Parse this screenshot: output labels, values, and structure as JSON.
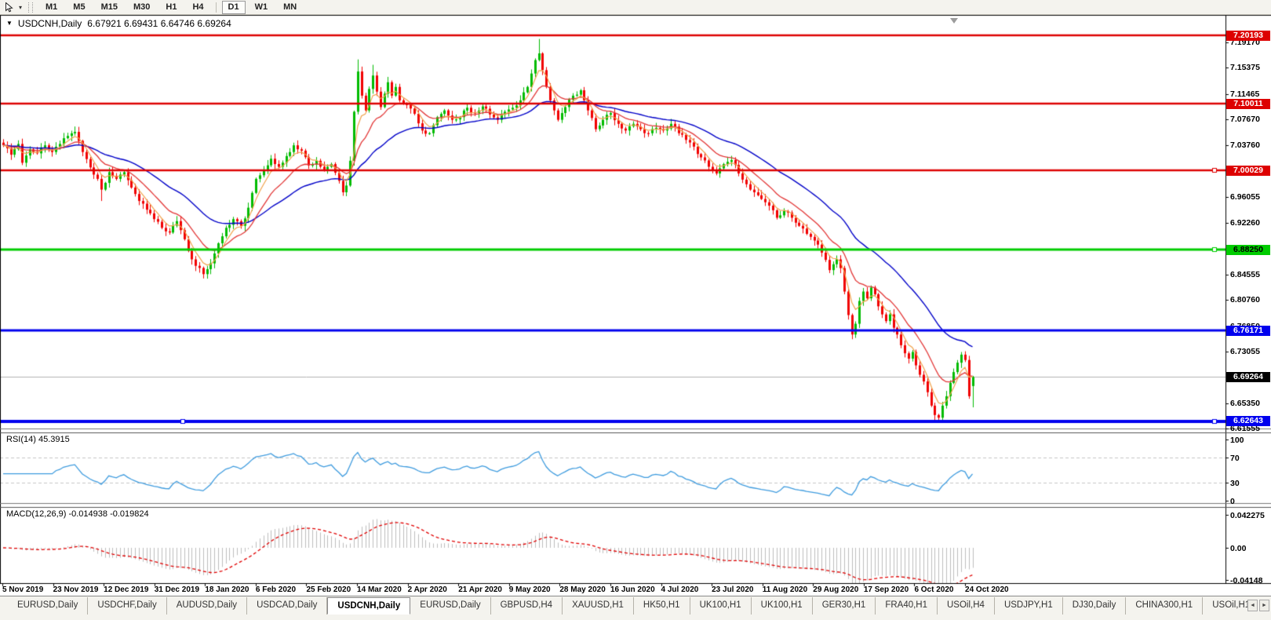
{
  "toolbar": {
    "dropdown_icon": "▾",
    "timeframes": [
      "M1",
      "M5",
      "M15",
      "M30",
      "H1",
      "H4",
      "D1",
      "W1",
      "MN"
    ],
    "active": "D1"
  },
  "chart": {
    "menu_icon": "▼",
    "symbol_period": "USDCNH,Daily",
    "ohlc_text": "6.67921 6.69431 6.64746 6.69264",
    "rsi_label": "RSI(14) 45.3915",
    "macd_label": "MACD(12,26,9) -0.014938 -0.019824"
  },
  "chart_data": {
    "type": "candlestick",
    "title": "USDCNH,Daily",
    "ohlc_display": {
      "open": "6.67921",
      "high": "6.69431",
      "low": "6.64746",
      "close": "6.69264"
    },
    "colors": {
      "bull": "#00bb00",
      "bear": "#f10000",
      "ma_fast": "#f0a24b",
      "ma_mid": "#e23636",
      "ma_slow": "#0000c8",
      "rsi": "#3e9bde",
      "macd_hist": "#bdbdbd",
      "macd_signal": "#e00000",
      "current_line": "#b0b0b0"
    },
    "y_axis": {
      "range": [
        6.6085,
        7.2152
      ],
      "ticks": [
        "7.19170",
        "7.15375",
        "7.11465",
        "7.07670",
        "7.03760",
        "6.96055",
        "6.92260",
        "6.84555",
        "6.80760",
        "6.76850",
        "6.73055",
        "6.65350",
        "6.61555"
      ]
    },
    "x_axis": {
      "labels": [
        "5 Nov 2019",
        "23 Nov 2019",
        "12 Dec 2019",
        "31 Dec 2019",
        "18 Jan 2020",
        "6 Feb 2020",
        "25 Feb 2020",
        "14 Mar 2020",
        "2 Apr 2020",
        "21 Apr 2020",
        "9 May 2020",
        "28 May 2020",
        "16 Jun 2020",
        "4 Jul 2020",
        "23 Jul 2020",
        "11 Aug 2020",
        "29 Aug 2020",
        "17 Sep 2020",
        "6 Oct 2020",
        "24 Oct 2020"
      ]
    },
    "hlines": [
      {
        "price": 7.20193,
        "label": "7.20193",
        "color": "#dd0000",
        "width": 2.5,
        "label_bg": "#dd0000",
        "label_fg": "#ffffff",
        "handles": []
      },
      {
        "price": 7.10011,
        "label": "7.10011",
        "color": "#dd0000",
        "width": 2.5,
        "label_bg": "#dd0000",
        "label_fg": "#ffffff",
        "handles": []
      },
      {
        "price": 7.00029,
        "label": "7.00029",
        "color": "#dd0000",
        "width": 2.5,
        "label_bg": "#dd0000",
        "label_fg": "#ffffff",
        "handles": [
          1548
        ]
      },
      {
        "price": 6.8825,
        "label": "6.88250",
        "color": "#00cc00",
        "width": 3,
        "label_bg": "#00cc00",
        "label_fg": "#000000",
        "handles": [
          1548
        ]
      },
      {
        "price": 6.76171,
        "label": "6.76171",
        "color": "#0000ee",
        "width": 3,
        "label_bg": "#0000ee",
        "label_fg": "#ffffff",
        "handles": []
      },
      {
        "price": 6.62643,
        "label": "6.62643",
        "color": "#0000ee",
        "width": 4,
        "label_bg": "#0000ee",
        "label_fg": "#ffffff",
        "handles": [
          233,
          1548
        ]
      }
    ],
    "current_price": {
      "value": 6.69264,
      "label": "6.69264",
      "label_bg": "#000000",
      "label_fg": "#ffffff"
    },
    "candles": {
      "count": 258,
      "close_anchors": [
        [
          0,
          7.038
        ],
        [
          2,
          7.024
        ],
        [
          4,
          7.04
        ],
        [
          5,
          7.012
        ],
        [
          7,
          7.032
        ],
        [
          9,
          7.026
        ],
        [
          11,
          7.038
        ],
        [
          13,
          7.028
        ],
        [
          15,
          7.04
        ],
        [
          17,
          7.052
        ],
        [
          19,
          7.058
        ],
        [
          21,
          7.028
        ],
        [
          23,
          7.005
        ],
        [
          25,
          6.988
        ],
        [
          26,
          6.972
        ],
        [
          28,
          6.998
        ],
        [
          30,
          6.988
        ],
        [
          32,
          6.998
        ],
        [
          34,
          6.975
        ],
        [
          36,
          6.955
        ],
        [
          38,
          6.942
        ],
        [
          40,
          6.928
        ],
        [
          42,
          6.915
        ],
        [
          44,
          6.908
        ],
        [
          46,
          6.925
        ],
        [
          48,
          6.898
        ],
        [
          50,
          6.868
        ],
        [
          53,
          6.846
        ],
        [
          55,
          6.862
        ],
        [
          57,
          6.892
        ],
        [
          59,
          6.915
        ],
        [
          61,
          6.928
        ],
        [
          63,
          6.918
        ],
        [
          65,
          6.945
        ],
        [
          67,
          6.988
        ],
        [
          69,
          7.0
        ],
        [
          71,
          7.018
        ],
        [
          73,
          7.006
        ],
        [
          75,
          7.022
        ],
        [
          77,
          7.038
        ],
        [
          79,
          7.03
        ],
        [
          81,
          7.008
        ],
        [
          83,
          7.015
        ],
        [
          85,
          7.002
        ],
        [
          87,
          7.01
        ],
        [
          89,
          6.985
        ],
        [
          90,
          6.968
        ],
        [
          91,
          6.978
        ],
        [
          92,
          7.015
        ],
        [
          93,
          7.088
        ],
        [
          94,
          7.148
        ],
        [
          95,
          7.112
        ],
        [
          96,
          7.09
        ],
        [
          97,
          7.122
        ],
        [
          98,
          7.142
        ],
        [
          99,
          7.118
        ],
        [
          100,
          7.095
        ],
        [
          101,
          7.115
        ],
        [
          102,
          7.132
        ],
        [
          103,
          7.112
        ],
        [
          104,
          7.125
        ],
        [
          105,
          7.105
        ],
        [
          107,
          7.098
        ],
        [
          109,
          7.085
        ],
        [
          111,
          7.06
        ],
        [
          113,
          7.056
        ],
        [
          115,
          7.08
        ],
        [
          117,
          7.09
        ],
        [
          119,
          7.076
        ],
        [
          121,
          7.08
        ],
        [
          123,
          7.094
        ],
        [
          125,
          7.086
        ],
        [
          127,
          7.096
        ],
        [
          129,
          7.084
        ],
        [
          131,
          7.076
        ],
        [
          133,
          7.088
        ],
        [
          135,
          7.094
        ],
        [
          137,
          7.105
        ],
        [
          139,
          7.125
        ],
        [
          140,
          7.145
        ],
        [
          141,
          7.165
        ],
        [
          142,
          7.175
        ],
        [
          143,
          7.15
        ],
        [
          144,
          7.125
        ],
        [
          145,
          7.105
        ],
        [
          146,
          7.09
        ],
        [
          147,
          7.076
        ],
        [
          149,
          7.095
        ],
        [
          151,
          7.112
        ],
        [
          153,
          7.12
        ],
        [
          155,
          7.09
        ],
        [
          157,
          7.062
        ],
        [
          159,
          7.076
        ],
        [
          161,
          7.086
        ],
        [
          163,
          7.07
        ],
        [
          165,
          7.06
        ],
        [
          167,
          7.07
        ],
        [
          169,
          7.062
        ],
        [
          171,
          7.056
        ],
        [
          173,
          7.064
        ],
        [
          175,
          7.06
        ],
        [
          177,
          7.07
        ],
        [
          179,
          7.056
        ],
        [
          181,
          7.046
        ],
        [
          183,
          7.036
        ],
        [
          185,
          7.02
        ],
        [
          187,
          7.006
        ],
        [
          189,
          6.996
        ],
        [
          191,
          7.01
        ],
        [
          193,
          7.016
        ],
        [
          195,
          6.996
        ],
        [
          197,
          6.98
        ],
        [
          199,
          6.968
        ],
        [
          201,
          6.958
        ],
        [
          203,
          6.948
        ],
        [
          205,
          6.93
        ],
        [
          207,
          6.94
        ],
        [
          209,
          6.93
        ],
        [
          211,
          6.918
        ],
        [
          213,
          6.906
        ],
        [
          215,
          6.896
        ],
        [
          217,
          6.878
        ],
        [
          219,
          6.852
        ],
        [
          221,
          6.868
        ],
        [
          222,
          6.855
        ],
        [
          223,
          6.82
        ],
        [
          224,
          6.785
        ],
        [
          225,
          6.756
        ],
        [
          226,
          6.772
        ],
        [
          227,
          6.806
        ],
        [
          228,
          6.82
        ],
        [
          229,
          6.81
        ],
        [
          230,
          6.826
        ],
        [
          231,
          6.816
        ],
        [
          232,
          6.798
        ],
        [
          233,
          6.786
        ],
        [
          234,
          6.776
        ],
        [
          235,
          6.786
        ],
        [
          236,
          6.766
        ],
        [
          237,
          6.756
        ],
        [
          238,
          6.74
        ],
        [
          239,
          6.728
        ],
        [
          240,
          6.72
        ],
        [
          241,
          6.73
        ],
        [
          242,
          6.71
        ],
        [
          243,
          6.696
        ],
        [
          244,
          6.686
        ],
        [
          245,
          6.67
        ],
        [
          246,
          6.65
        ],
        [
          247,
          6.636
        ],
        [
          248,
          6.632
        ],
        [
          249,
          6.65
        ],
        [
          250,
          6.664
        ],
        [
          251,
          6.684
        ],
        [
          252,
          6.7
        ],
        [
          253,
          6.714
        ],
        [
          254,
          6.726
        ],
        [
          255,
          6.718
        ],
        [
          256,
          6.664
        ],
        [
          257,
          6.69264
        ]
      ],
      "wick_overrides": {
        "19": [
          7.066,
          null
        ],
        "26": [
          null,
          6.955
        ],
        "53": [
          null,
          6.8425
        ],
        "94": [
          7.166,
          null
        ],
        "98": [
          7.158,
          null
        ],
        "142": [
          7.1965,
          null
        ],
        "225": [
          null,
          6.7528
        ],
        "248": [
          null,
          6.627
        ]
      },
      "last_candle": {
        "open": 6.67921,
        "high": 6.69431,
        "low": 6.64746,
        "close": 6.69264
      }
    },
    "overlays": [
      {
        "name": "ma-fast",
        "method": "ema",
        "period": 5,
        "color": "#f0a24b"
      },
      {
        "name": "ma-mid",
        "method": "ema",
        "period": 13,
        "color": "#e23636"
      },
      {
        "name": "ma-slow",
        "method": "ema",
        "period": 34,
        "color": "#0000c8"
      }
    ],
    "rsi": {
      "period": 14,
      "current": "45.3915",
      "levels": [
        70,
        30
      ],
      "ticks": [
        {
          "label": "100",
          "value": 100
        },
        {
          "label": "70",
          "value": 70
        },
        {
          "label": "30",
          "value": 30
        },
        {
          "label": "0",
          "value": 0
        }
      ]
    },
    "macd": {
      "fast": 12,
      "slow": 26,
      "signal": 9,
      "current": "-0.014938",
      "signal_current": "-0.019824",
      "ticks": [
        {
          "label": "0.042275",
          "value": 0.042275
        },
        {
          "label": "0.00",
          "value": 0
        },
        {
          "label": "-0.04148",
          "value": -0.04148
        }
      ]
    }
  },
  "tabs": {
    "active_index": 4,
    "scroll_left": "◄",
    "scroll_right": "►",
    "items": [
      "EURUSD,Daily",
      "USDCHF,Daily",
      "AUDUSD,Daily",
      "USDCAD,Daily",
      "USDCNH,Daily",
      "EURUSD,Daily",
      "GBPUSD,H4",
      "XAUUSD,H1",
      "HK50,H1",
      "UK100,H1",
      "UK100,H1",
      "GER30,H1",
      "FRA40,H1",
      "USOil,H4",
      "USDJPY,H1",
      "DJ30,Daily",
      "CHINA300,H1",
      "USOil,H1"
    ]
  }
}
